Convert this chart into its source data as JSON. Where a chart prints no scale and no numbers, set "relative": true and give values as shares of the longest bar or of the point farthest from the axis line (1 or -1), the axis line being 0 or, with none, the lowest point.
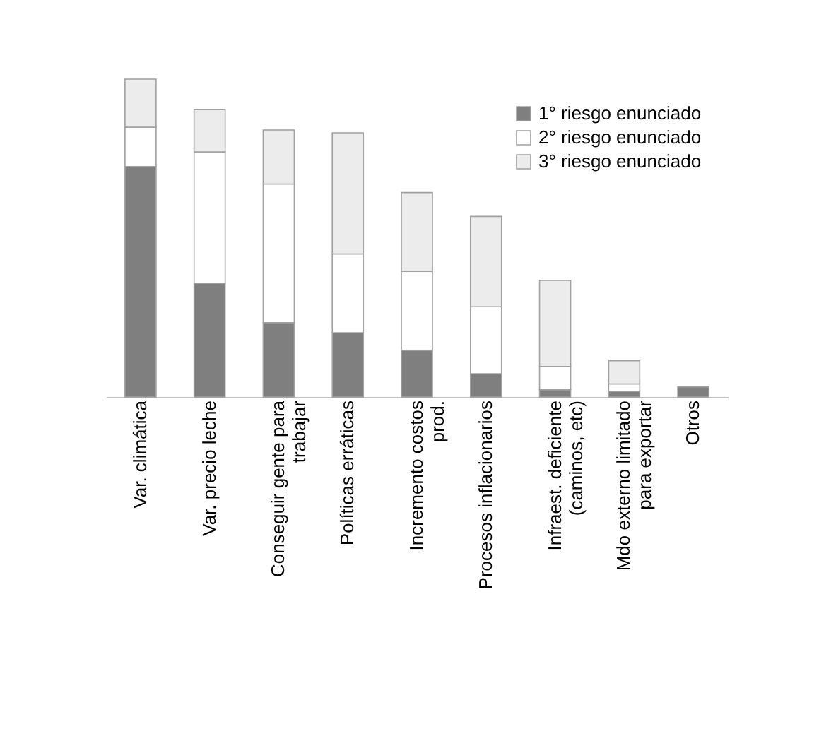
{
  "chart_data": {
    "type": "bar",
    "stacked": true,
    "relative": true,
    "legend": "top right",
    "grid": false,
    "categories": [
      "Var. climática",
      "Var. precio leche",
      "Conseguir gente  para trabajar",
      "Políticas erráticas",
      "Incremento  costos  prod.",
      "Procesos inflacionarios",
      "Infraest. deficiente (caminos, etc)",
      "Mdo externo limitado para exportar",
      "Otros"
    ],
    "series": [
      {
        "name": "1° riesgo enunciado",
        "color": "#7f7f7f",
        "values": [
          0.725,
          0.358,
          0.234,
          0.202,
          0.147,
          0.073,
          0.023,
          0.018,
          0.032
        ]
      },
      {
        "name": "2° riesgo enunciado",
        "color": "#ffffff",
        "values": [
          0.124,
          0.413,
          0.436,
          0.248,
          0.248,
          0.211,
          0.073,
          0.023,
          null
        ]
      },
      {
        "name": "3° riesgo enunciado",
        "color": "#ececec",
        "values": [
          0.151,
          0.133,
          0.17,
          0.381,
          0.248,
          0.284,
          0.271,
          0.073,
          null
        ]
      }
    ]
  }
}
